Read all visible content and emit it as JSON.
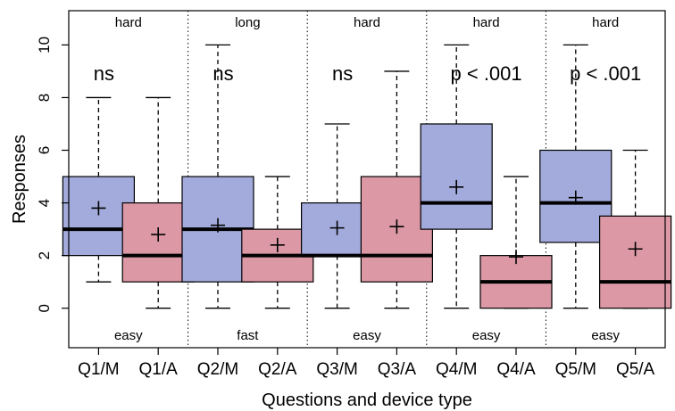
{
  "chart_data": {
    "type": "boxplot",
    "xlabel": "Questions and device type",
    "ylabel": "Responses",
    "ylim": [
      -1.5,
      11.3
    ],
    "yticks": [
      0,
      2,
      4,
      6,
      8,
      10
    ],
    "grid": false,
    "legend": "none",
    "colors": {
      "M": "#a3abdc",
      "A": "#dc98a5"
    },
    "categories": [
      "Q1/M",
      "Q1/A",
      "Q2/M",
      "Q2/A",
      "Q3/M",
      "Q3/A",
      "Q4/M",
      "Q4/A",
      "Q5/M",
      "Q5/A"
    ],
    "boxes": [
      {
        "label": "Q1/M",
        "device": "M",
        "whisker_low": 1,
        "q1": 2,
        "median": 3,
        "q3": 5,
        "whisker_high": 8,
        "mean": 3.8
      },
      {
        "label": "Q1/A",
        "device": "A",
        "whisker_low": 0,
        "q1": 1,
        "median": 2,
        "q3": 4,
        "whisker_high": 8,
        "mean": 2.8
      },
      {
        "label": "Q2/M",
        "device": "M",
        "whisker_low": 0,
        "q1": 1,
        "median": 3,
        "q3": 5,
        "whisker_high": 10,
        "mean": 3.15
      },
      {
        "label": "Q2/A",
        "device": "A",
        "whisker_low": 0,
        "q1": 1,
        "median": 2,
        "q3": 3,
        "whisker_high": 5,
        "mean": 2.4
      },
      {
        "label": "Q3/M",
        "device": "M",
        "whisker_low": 0,
        "q1": 2,
        "median": 2,
        "q3": 4,
        "whisker_high": 7,
        "mean": 3.05
      },
      {
        "label": "Q3/A",
        "device": "A",
        "whisker_low": 0,
        "q1": 1,
        "median": 2,
        "q3": 5,
        "whisker_high": 9,
        "mean": 3.1
      },
      {
        "label": "Q4/M",
        "device": "M",
        "whisker_low": 0,
        "q1": 3,
        "median": 4,
        "q3": 7,
        "whisker_high": 10,
        "mean": 4.6
      },
      {
        "label": "Q4/A",
        "device": "A",
        "whisker_low": 0,
        "q1": 0,
        "median": 1,
        "q3": 2,
        "whisker_high": 5,
        "mean": 1.95
      },
      {
        "label": "Q5/M",
        "device": "M",
        "whisker_low": 0,
        "q1": 2.5,
        "median": 4,
        "q3": 6,
        "whisker_high": 10,
        "mean": 4.2
      },
      {
        "label": "Q5/A",
        "device": "A",
        "whisker_low": 0,
        "q1": 0,
        "median": 1,
        "q3": 3.5,
        "whisker_high": 6,
        "mean": 2.25
      }
    ],
    "panels": [
      {
        "top": "hard",
        "bottom": "easy",
        "significance": "ns"
      },
      {
        "top": "long",
        "bottom": "fast",
        "significance": "ns"
      },
      {
        "top": "hard",
        "bottom": "easy",
        "significance": "ns"
      },
      {
        "top": "hard",
        "bottom": "easy",
        "significance": "p < .001"
      },
      {
        "top": "hard",
        "bottom": "easy",
        "significance": "p < .001"
      }
    ]
  }
}
